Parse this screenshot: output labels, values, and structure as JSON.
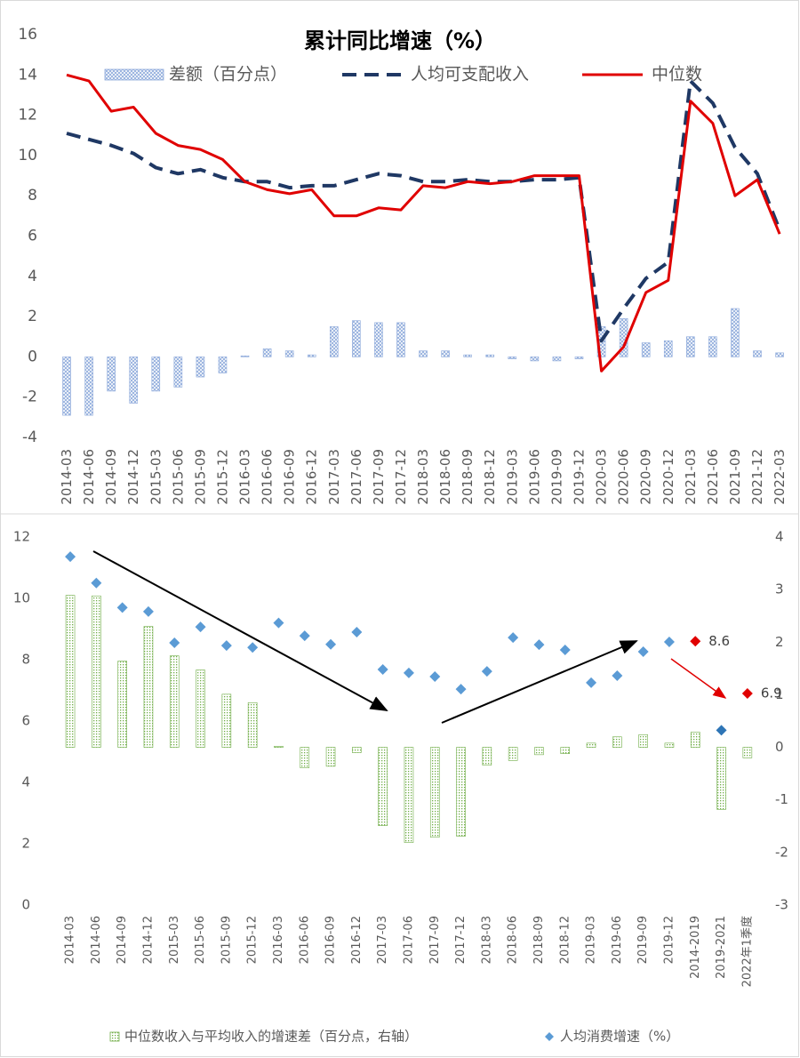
{
  "chart_data": [
    {
      "type": "combo",
      "title": "累计同比增速（%）",
      "categories": [
        "2014-03",
        "2014-06",
        "2014-09",
        "2014-12",
        "2015-03",
        "2015-06",
        "2015-09",
        "2015-12",
        "2016-03",
        "2016-06",
        "2016-09",
        "2016-12",
        "2017-03",
        "2017-06",
        "2017-09",
        "2017-12",
        "2018-03",
        "2018-06",
        "2018-09",
        "2018-12",
        "2019-03",
        "2019-06",
        "2019-09",
        "2019-12",
        "2020-03",
        "2020-06",
        "2020-09",
        "2020-12",
        "2021-03",
        "2021-06",
        "2021-09",
        "2021-12",
        "2022-03"
      ],
      "series": [
        {
          "name": "差额（百分点）",
          "type": "bar",
          "color": "#8eaadb",
          "values": [
            -2.9,
            -2.9,
            -1.7,
            -2.3,
            -1.7,
            -1.5,
            -1.0,
            -0.8,
            0.05,
            0.4,
            0.3,
            0.1,
            1.5,
            1.8,
            1.7,
            1.7,
            0.3,
            0.3,
            0.1,
            0.1,
            -0.1,
            -0.2,
            -0.2,
            -0.1,
            1.5,
            1.9,
            0.7,
            0.8,
            1.0,
            1.0,
            2.4,
            0.3,
            0.2
          ]
        },
        {
          "name": "人均可支配收入",
          "type": "line",
          "dashed": true,
          "color": "#1f3864",
          "values": [
            11.1,
            10.8,
            10.5,
            10.1,
            9.4,
            9.1,
            9.3,
            8.9,
            8.7,
            8.7,
            8.4,
            8.5,
            8.5,
            8.8,
            9.1,
            9.0,
            8.7,
            8.7,
            8.8,
            8.7,
            8.7,
            8.8,
            8.8,
            8.9,
            0.8,
            2.4,
            3.9,
            4.7,
            13.7,
            12.6,
            10.4,
            9.1,
            6.3
          ]
        },
        {
          "name": "中位数",
          "type": "line",
          "color": "#e00000",
          "values": [
            14.0,
            13.7,
            12.2,
            12.4,
            11.1,
            10.5,
            10.3,
            9.8,
            8.7,
            8.3,
            8.1,
            8.3,
            7.0,
            7.0,
            7.4,
            7.3,
            8.5,
            8.4,
            8.7,
            8.6,
            8.7,
            9.0,
            9.0,
            9.0,
            -0.7,
            0.5,
            3.2,
            3.8,
            12.7,
            11.6,
            8.0,
            8.8,
            6.1
          ]
        }
      ],
      "ylim": [
        -4,
        16
      ],
      "yticks": [
        -4,
        -2,
        0,
        2,
        4,
        6,
        8,
        10,
        12,
        14,
        16
      ]
    },
    {
      "type": "combo",
      "categories": [
        "2014-03",
        "2014-06",
        "2014-09",
        "2014-12",
        "2015-03",
        "2015-06",
        "2015-09",
        "2015-12",
        "2016-03",
        "2016-06",
        "2016-09",
        "2016-12",
        "2017-03",
        "2017-06",
        "2017-09",
        "2017-12",
        "2018-03",
        "2018-06",
        "2018-09",
        "2018-12",
        "2019-03",
        "2019-06",
        "2019-09",
        "2019-12",
        "2014-2019",
        "2019-2021",
        "2022年1季度"
      ],
      "series": [
        {
          "name": "中位数收入与平均收入的增速差（百分点，右轴）",
          "type": "bar",
          "axis": "y2",
          "color": "#70ad47",
          "values": [
            2.89,
            2.88,
            1.64,
            2.3,
            1.74,
            1.47,
            1.01,
            0.85,
            0.02,
            -0.39,
            -0.36,
            -0.1,
            -1.49,
            -1.81,
            -1.71,
            -1.69,
            -0.34,
            -0.25,
            -0.14,
            -0.12,
            0.08,
            0.2,
            0.24,
            0.08,
            0.29,
            -1.18,
            -0.2
          ]
        },
        {
          "name": "人均消费增速（%）",
          "type": "scatter",
          "color": "#5b9bd5",
          "point_colors": [
            "#5b9bd5",
            "#5b9bd5",
            "#5b9bd5",
            "#5b9bd5",
            "#5b9bd5",
            "#5b9bd5",
            "#5b9bd5",
            "#5b9bd5",
            "#5b9bd5",
            "#5b9bd5",
            "#5b9bd5",
            "#5b9bd5",
            "#5b9bd5",
            "#5b9bd5",
            "#5b9bd5",
            "#5b9bd5",
            "#5b9bd5",
            "#5b9bd5",
            "#5b9bd5",
            "#5b9bd5",
            "#5b9bd5",
            "#5b9bd5",
            "#5b9bd5",
            "#5b9bd5",
            "#e00000",
            "#2e75b6",
            "#e00000"
          ],
          "values": [
            11.36,
            10.5,
            9.7,
            9.57,
            8.55,
            9.07,
            8.46,
            8.4,
            9.2,
            8.78,
            8.5,
            8.9,
            7.68,
            7.57,
            7.45,
            7.04,
            7.62,
            8.72,
            8.49,
            8.32,
            7.25,
            7.48,
            8.26,
            8.58,
            8.6,
            5.7,
            6.9
          ],
          "value_labels": [
            null,
            null,
            null,
            null,
            null,
            null,
            null,
            null,
            null,
            null,
            null,
            null,
            null,
            null,
            null,
            null,
            null,
            null,
            null,
            null,
            null,
            null,
            null,
            null,
            "8.6",
            null,
            "6.9"
          ]
        }
      ],
      "ylim": [
        0,
        12
      ],
      "yticks": [
        0,
        2,
        4,
        6,
        8,
        10,
        12
      ],
      "y2lim": [
        -3,
        4
      ],
      "y2ticks": [
        -3,
        -2,
        -1,
        0,
        1,
        2,
        3,
        4
      ]
    }
  ]
}
